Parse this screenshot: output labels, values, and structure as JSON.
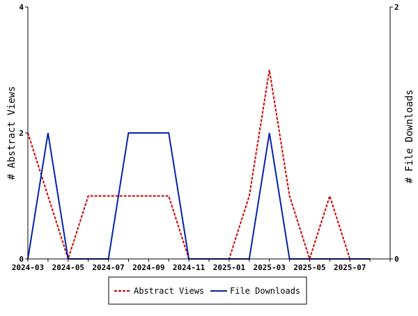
{
  "chart_data": {
    "type": "line",
    "title": "",
    "xlabel": "",
    "ylabel": "# Abstract Views",
    "y2label": "# File Downloads",
    "x": [
      "2024-03",
      "2024-04",
      "2024-05",
      "2024-06",
      "2024-07",
      "2024-08",
      "2024-09",
      "2024-10",
      "2024-11",
      "2024-12",
      "2025-01",
      "2025-02",
      "2025-03",
      "2025-04",
      "2025-05",
      "2025-06",
      "2025-07",
      "2025-08"
    ],
    "x_tick_labels": [
      "2024-03",
      "2024-05",
      "2024-07",
      "2024-09",
      "2024-11",
      "2025-01",
      "2025-03",
      "2025-05",
      "2025-07"
    ],
    "ylim": [
      0,
      4
    ],
    "y_ticks": [
      "0",
      "2",
      "4"
    ],
    "y2lim": [
      0,
      2
    ],
    "y2_ticks": [
      "0",
      "2"
    ],
    "grid": false,
    "legend_position": "bottom-center",
    "series": [
      {
        "name": "Abstract Views",
        "axis": "left",
        "color": "#cc0000",
        "style": "dashed",
        "values": [
          2,
          1,
          0,
          1,
          1,
          1,
          1,
          1,
          0,
          0,
          0,
          1,
          3,
          1,
          0,
          1,
          0,
          0
        ]
      },
      {
        "name": "File Downloads",
        "axis": "right",
        "color": "#0022aa",
        "style": "solid",
        "values": [
          0,
          1,
          0,
          0,
          0,
          1,
          1,
          1,
          0,
          0,
          0,
          0,
          1,
          0,
          0,
          0,
          0,
          0
        ]
      }
    ]
  }
}
